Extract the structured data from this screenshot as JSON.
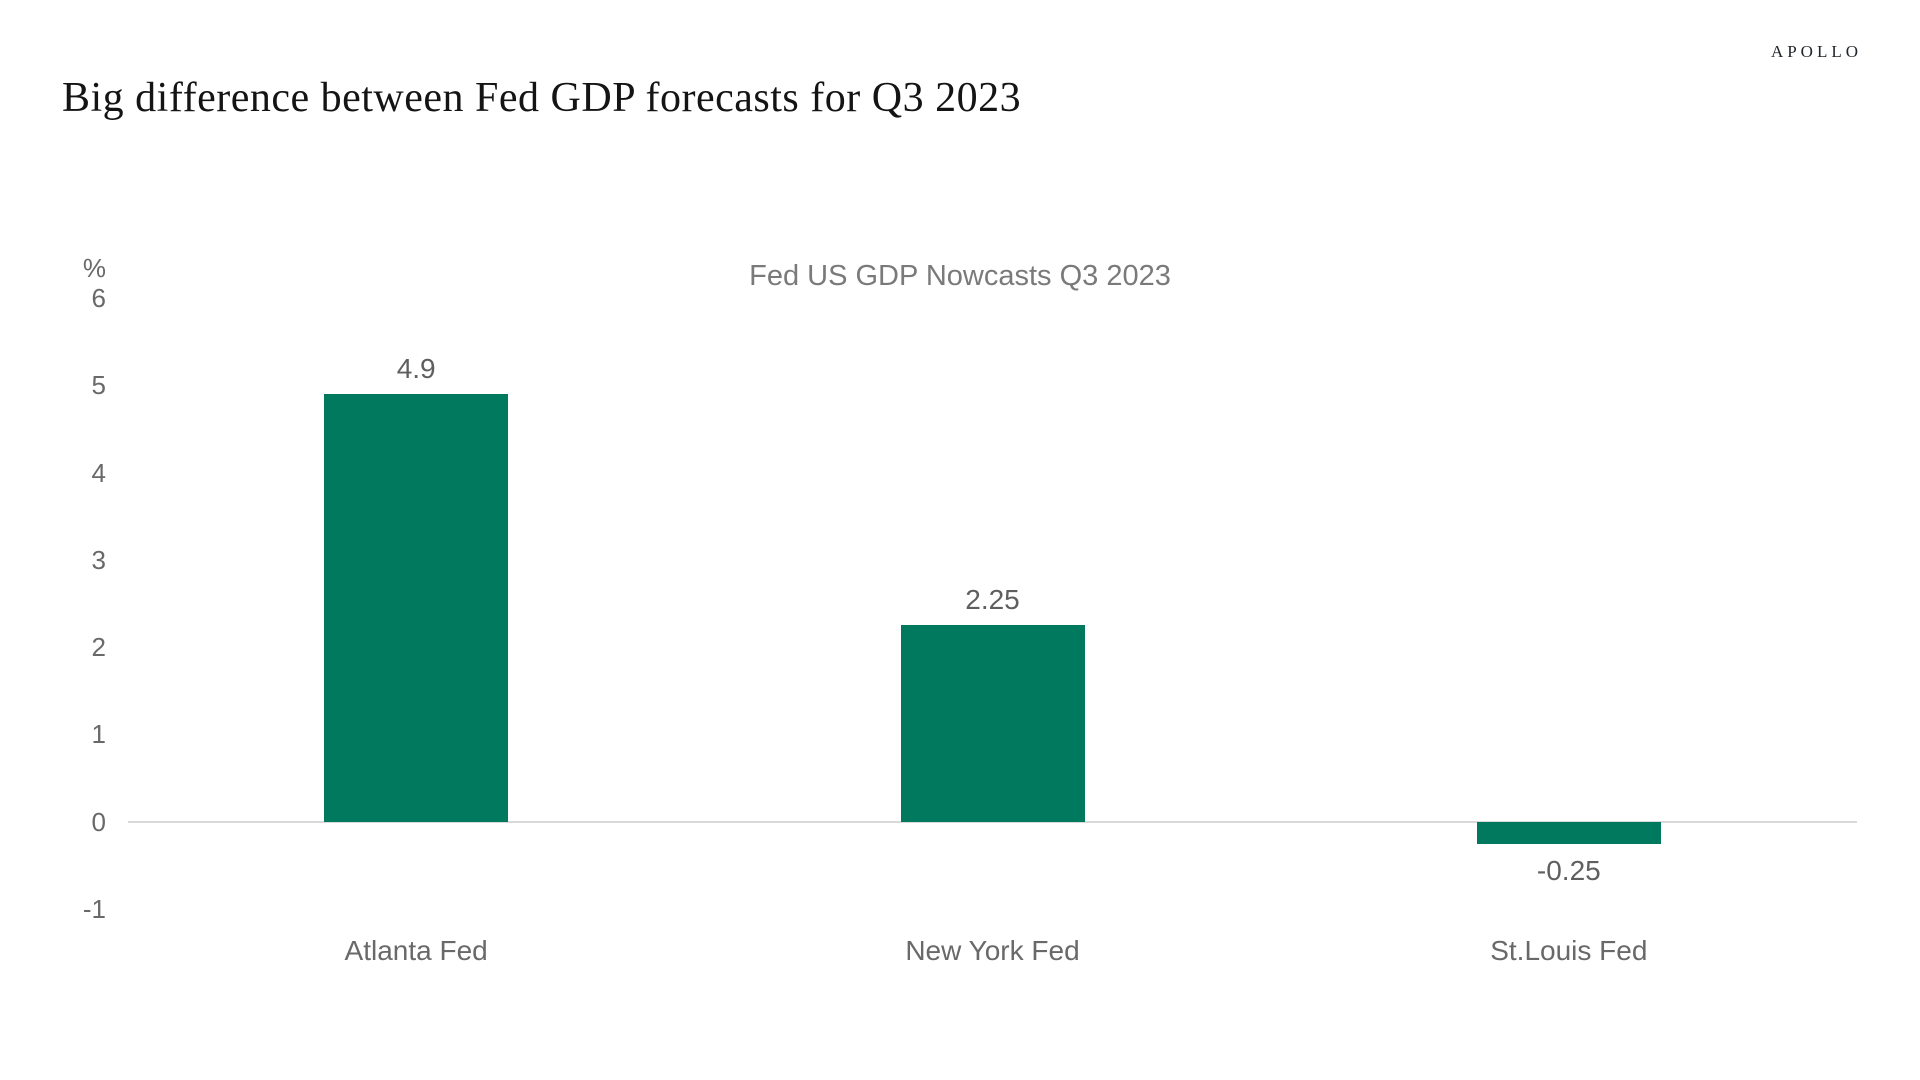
{
  "header": {
    "title": "Big difference between Fed GDP forecasts for Q3 2023",
    "logo": "APOLLO"
  },
  "chart_data": {
    "type": "bar",
    "title": "Fed US GDP Nowcasts Q3 2023",
    "xlabel": "",
    "ylabel": "%",
    "categories": [
      "Atlanta Fed",
      "New York Fed",
      "St.Louis Fed"
    ],
    "values": [
      4.9,
      2.25,
      -0.25
    ],
    "value_labels": [
      "4.9",
      "2.25",
      "-0.25"
    ],
    "yticks": [
      6,
      5,
      4,
      3,
      2,
      1,
      0,
      -1
    ],
    "ylim": [
      -1,
      6
    ],
    "grid": false,
    "legend": "none",
    "bar_color": "#00795F",
    "label_color": "#5f5f5f",
    "axis_color": "#d9d9d9",
    "tick_color": "#696969",
    "title_color": "#7a7a7a"
  }
}
